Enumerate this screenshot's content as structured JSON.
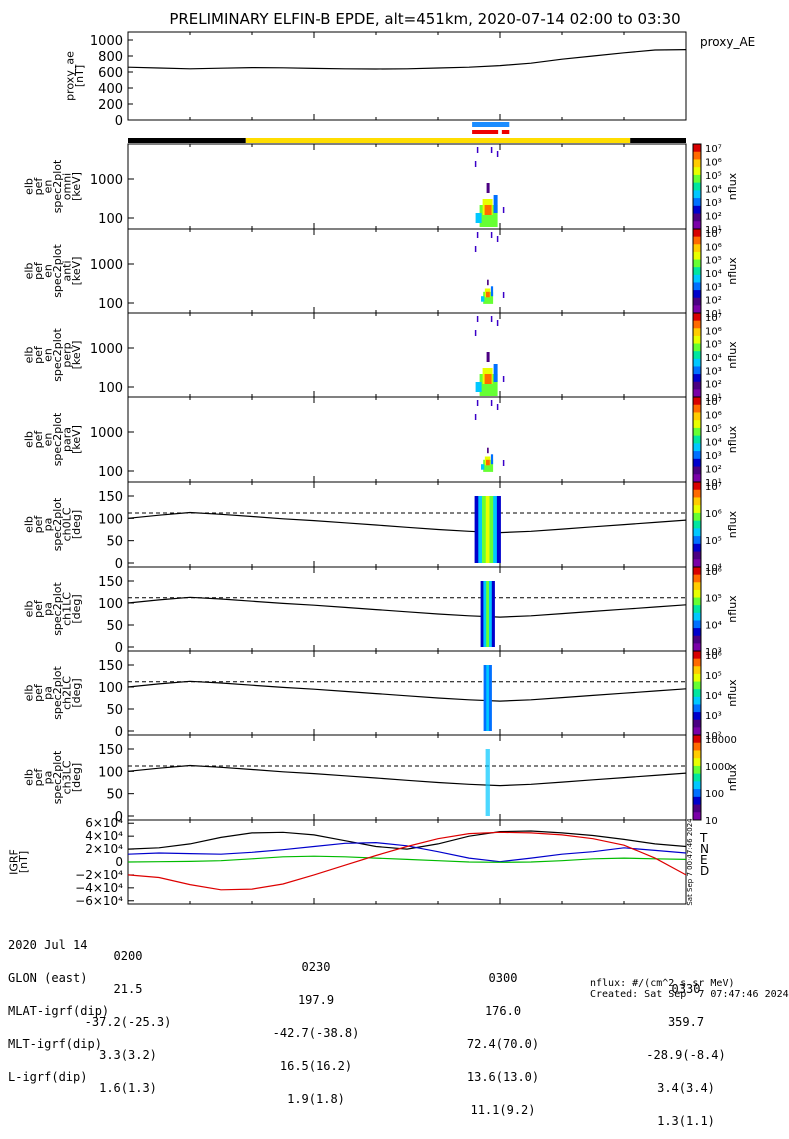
{
  "title": "PRELIMINARY ELFIN-B EPDE, alt=451km, 2020-07-14 02:00 to 03:30",
  "colors": {
    "axis": "#000000",
    "sun_yellow": "#ffdd00",
    "shadow_black": "#000000",
    "bar_blue": "#1a8cff",
    "bar_red": "#ee0000",
    "dir_T": "#000000",
    "dir_N": "#0000cc",
    "dir_E": "#00bb00",
    "dir_D": "#dd0000"
  },
  "time_axis": {
    "start_min": 0,
    "end_min": 90,
    "ticks": [
      "0200",
      "0230",
      "0300",
      "0330"
    ]
  },
  "proxy_ae": {
    "legend": "proxy_AE",
    "ylabel": [
      "proxy_ae",
      "[nT]"
    ],
    "ylim": [
      0,
      1100
    ],
    "ticks": [
      "1000",
      "800",
      "600",
      "400",
      "200",
      "0"
    ],
    "t": [
      0,
      5,
      10,
      15,
      20,
      25,
      30,
      35,
      40,
      45,
      50,
      55,
      60,
      65,
      70,
      75,
      80,
      85,
      90
    ],
    "v": [
      660,
      650,
      640,
      648,
      655,
      652,
      645,
      640,
      638,
      640,
      650,
      660,
      680,
      710,
      760,
      800,
      840,
      875,
      880
    ]
  },
  "status_bars": {
    "sunlight": [
      {
        "from": 0,
        "to": 19,
        "state": "shadow"
      },
      {
        "from": 19,
        "to": 81,
        "state": "sun"
      },
      {
        "from": 81,
        "to": 90,
        "state": "shadow"
      }
    ],
    "blue_segments": [
      [
        55.5,
        61.5
      ]
    ],
    "red_segments": [
      [
        55.5,
        59.7
      ],
      [
        60.3,
        61.5
      ]
    ]
  },
  "spec_panels": [
    {
      "ylabel": [
        "elb",
        "pef",
        "en",
        "spec2plot",
        "omni",
        "[keV]"
      ],
      "ticks": [
        "1000",
        "100"
      ],
      "unit": "nflux",
      "cbar_labels": [
        "10⁷",
        "10⁶",
        "10⁵",
        "10⁴",
        "10³",
        "10²",
        "10¹"
      ]
    },
    {
      "ylabel": [
        "elb",
        "pef",
        "en",
        "spec2plot",
        "anti",
        "[keV]"
      ],
      "ticks": [
        "1000",
        "100"
      ],
      "unit": "nflux",
      "cbar_labels": [
        "10⁷",
        "10⁶",
        "10⁵",
        "10⁴",
        "10³",
        "10²",
        "10¹"
      ]
    },
    {
      "ylabel": [
        "elb",
        "pef",
        "en",
        "spec2plot",
        "perp",
        "[keV]"
      ],
      "ticks": [
        "1000",
        "100"
      ],
      "unit": "nflux",
      "cbar_labels": [
        "10⁷",
        "10⁶",
        "10⁵",
        "10⁴",
        "10³",
        "10²",
        "10¹"
      ]
    },
    {
      "ylabel": [
        "elb",
        "pef",
        "en",
        "spec2plot",
        "para",
        "[keV]"
      ],
      "ticks": [
        "1000",
        "100"
      ],
      "unit": "nflux",
      "cbar_labels": [
        "10⁷",
        "10⁶",
        "10⁵",
        "10⁴",
        "10³",
        "10²",
        "10¹"
      ]
    }
  ],
  "pa_panels": [
    {
      "ylabel": [
        "elb",
        "pef",
        "pa",
        "spec2plot",
        "ch0LC",
        "[deg]"
      ],
      "ticks": [
        "150",
        "100",
        "50",
        "0"
      ],
      "unit": "nflux",
      "cbar_labels": [
        "10⁷",
        "10⁶",
        "10⁵",
        "10⁴"
      ]
    },
    {
      "ylabel": [
        "elb",
        "pef",
        "pa",
        "spec2plot",
        "ch1LC",
        "[deg]"
      ],
      "ticks": [
        "150",
        "100",
        "50",
        "0"
      ],
      "unit": "nflux",
      "cbar_labels": [
        "10⁶",
        "10⁵",
        "10⁴",
        "10³"
      ]
    },
    {
      "ylabel": [
        "elb",
        "pef",
        "pa",
        "spec2plot",
        "ch2LC",
        "[deg]"
      ],
      "ticks": [
        "150",
        "100",
        "50",
        "0"
      ],
      "unit": "nflux",
      "cbar_labels": [
        "10⁶",
        "10⁵",
        "10⁴",
        "10³",
        "10²"
      ]
    },
    {
      "ylabel": [
        "elb",
        "pef",
        "pa",
        "spec2plot",
        "ch3LC",
        "[deg]"
      ],
      "ticks": [
        "150",
        "100",
        "50",
        "0"
      ],
      "unit": "nflux",
      "cbar_labels": [
        "10000",
        "1000",
        "100",
        "10"
      ]
    }
  ],
  "igrf": {
    "ylabel": [
      "IGRF",
      "[nT]"
    ],
    "ylim": [
      -65000,
      65000
    ],
    "ticks": [
      "6×10⁴",
      "4×10⁴",
      "2×10⁴",
      "0",
      "−2×10⁴",
      "−4×10⁴",
      "−6×10⁴"
    ],
    "tick_values": [
      60000,
      40000,
      20000,
      0,
      -20000,
      -40000,
      -60000
    ],
    "legend": [
      "T",
      "N",
      "E",
      "D"
    ],
    "side_note": "Sat Sep  7 00:47:46 2024",
    "t": [
      0,
      5,
      10,
      15,
      20,
      25,
      30,
      35,
      40,
      45,
      50,
      55,
      60,
      65,
      70,
      75,
      80,
      85,
      90
    ],
    "series": {
      "T": [
        20000,
        22000,
        28000,
        38000,
        45000,
        46000,
        42000,
        33000,
        24000,
        20000,
        28000,
        40000,
        47000,
        48000,
        45000,
        41000,
        35000,
        28000,
        24000
      ],
      "N": [
        12000,
        14000,
        13000,
        12000,
        15000,
        19000,
        24000,
        29000,
        30000,
        25000,
        16000,
        6000,
        500,
        6000,
        12000,
        16000,
        22000,
        18000,
        14000
      ],
      "E": [
        0,
        500,
        1000,
        2000,
        5000,
        8000,
        9000,
        8000,
        6000,
        4000,
        2000,
        0,
        -500,
        0,
        2000,
        5000,
        6000,
        5000,
        4000
      ],
      "D": [
        -20000,
        -24000,
        -35000,
        -43000,
        -42000,
        -34000,
        -20000,
        -5000,
        10000,
        24000,
        36000,
        44000,
        46000,
        45000,
        42000,
        36000,
        26000,
        6000,
        -20000
      ]
    }
  },
  "loss_cone": {
    "t": [
      0,
      5,
      10,
      15,
      20,
      25,
      30,
      35,
      40,
      45,
      50,
      55,
      60,
      65,
      70,
      75,
      80,
      85,
      90
    ],
    "lc": [
      100,
      107,
      113,
      109,
      104,
      99,
      95,
      90,
      85,
      80,
      75,
      71,
      68,
      71,
      76,
      81,
      86,
      91,
      96
    ],
    "dashed": 112
  },
  "footer": {
    "rows": [
      {
        "label": "2020 Jul 14",
        "v1": "0200",
        "v2": "0230",
        "v3": "0300",
        "v4": "0330"
      },
      {
        "label": "GLON (east)",
        "v1": "21.5",
        "v2": "197.9",
        "v3": "176.0",
        "v4": "359.7"
      },
      {
        "label": "MLAT-igrf(dip)",
        "v1": "-37.2(-25.3)",
        "v2": "-42.7(-38.8)",
        "v3": "72.4(70.0)",
        "v4": "-28.9(-8.4)"
      },
      {
        "label": "MLT-igrf(dip)",
        "v1": "3.3(3.2)",
        "v2": "16.5(16.2)",
        "v3": "13.6(13.0)",
        "v4": "3.4(3.4)"
      },
      {
        "label": "L-igrf(dip)",
        "v1": "1.6(1.3)",
        "v2": "1.9(1.8)",
        "v3": "11.1(9.2)",
        "v4": "1.3(1.1)"
      }
    ],
    "units_note": "nflux: #/(cm^2 s sr MeV)",
    "created": "Created: Sat Sep  7 07:47:46 2024"
  }
}
